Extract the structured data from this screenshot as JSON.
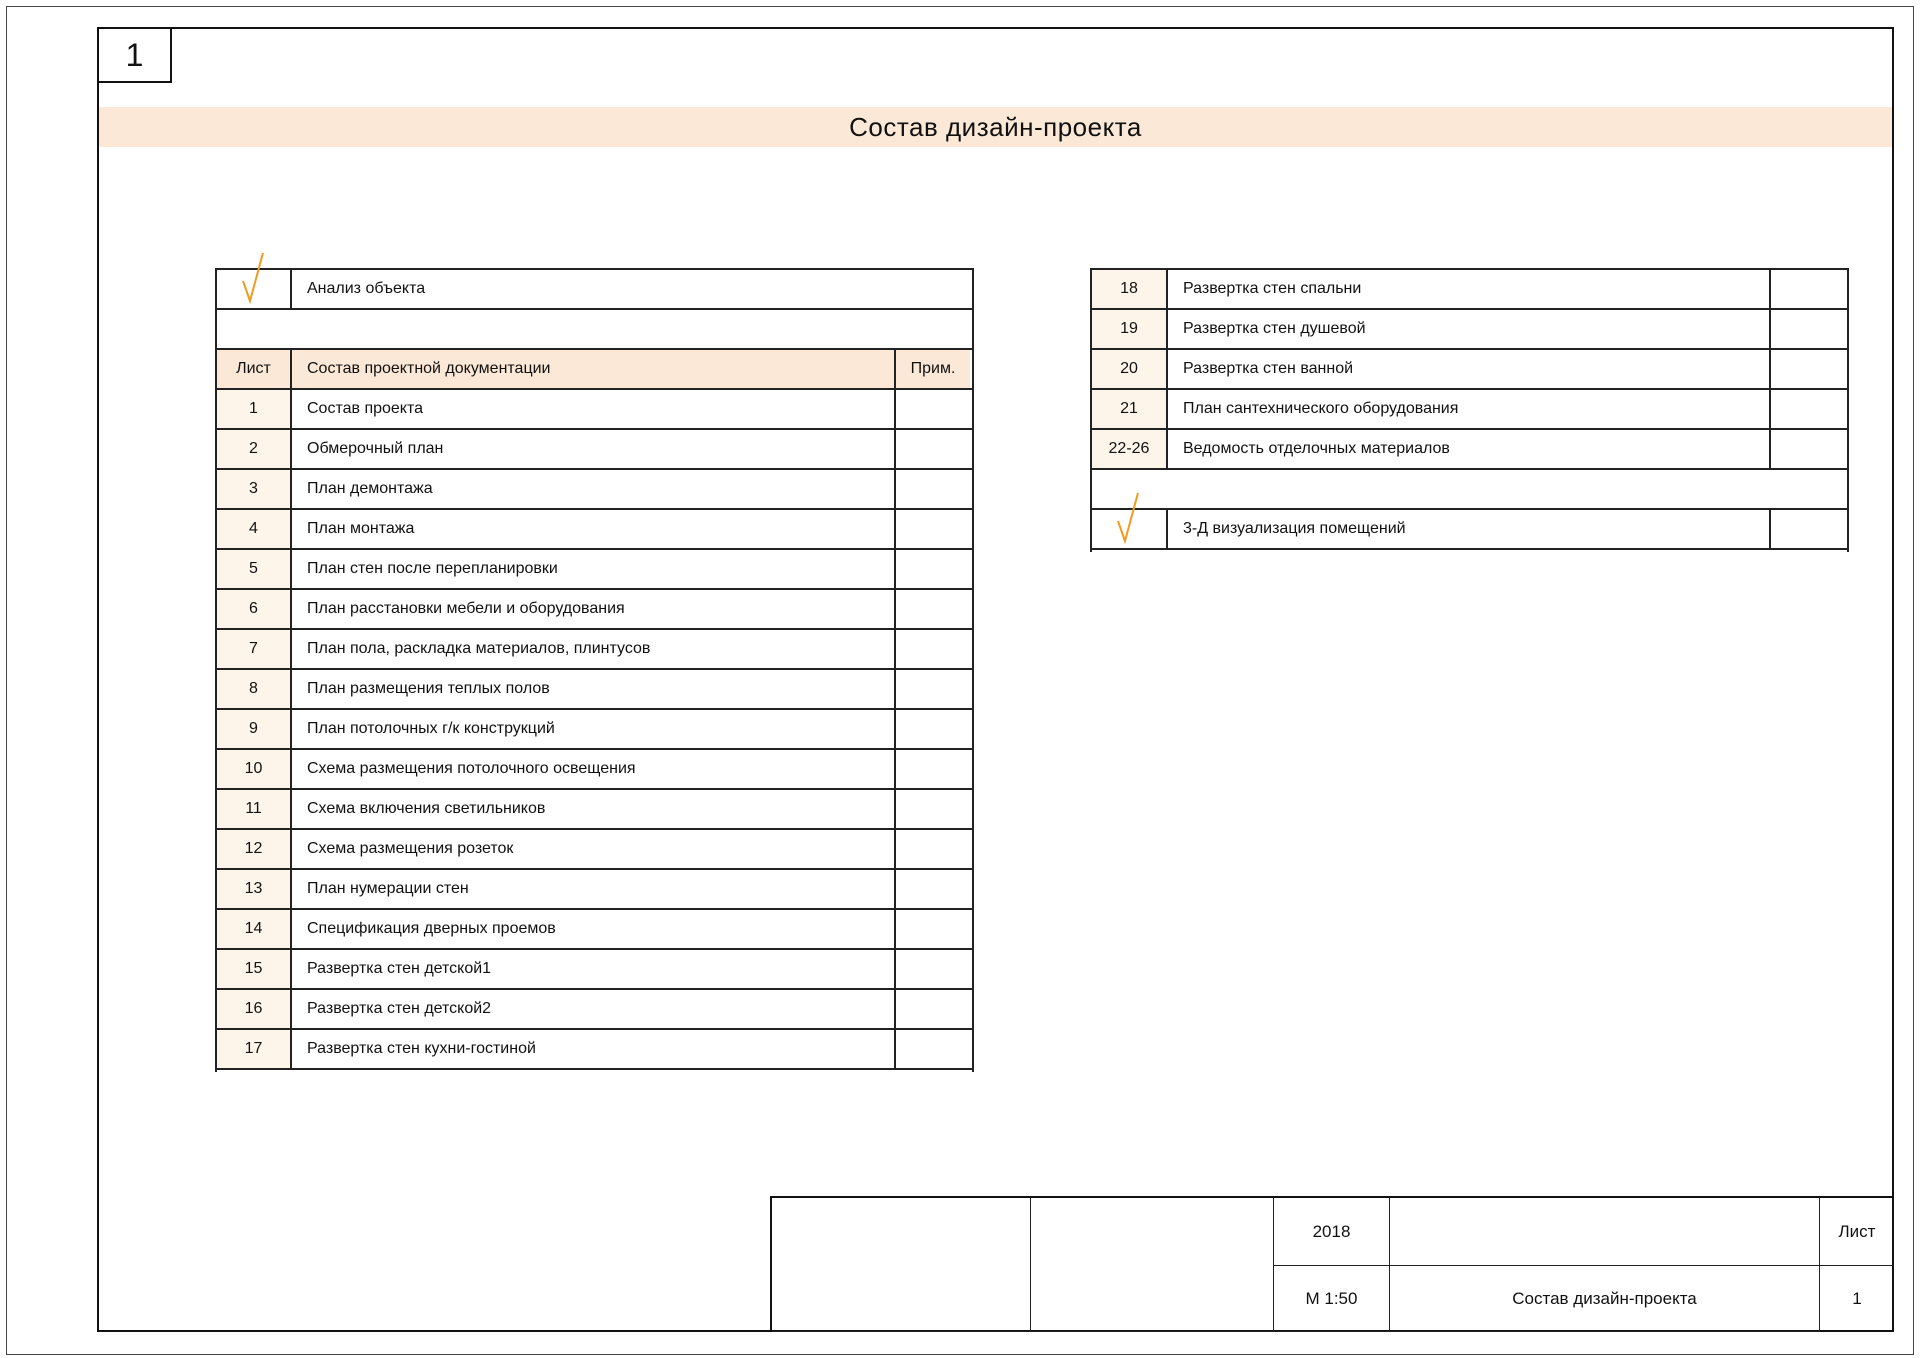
{
  "sheet_number": "1",
  "title": "Состав дизайн-проекта",
  "left_table": {
    "intro": {
      "mark": "check-icon",
      "label": "Анализ объекта"
    },
    "header": {
      "sheet": "Лист",
      "content": "Состав проектной документации",
      "note": "Прим."
    },
    "rows": [
      {
        "sheet": "1",
        "content": "Состав проекта"
      },
      {
        "sheet": "2",
        "content": "Обмерочный план"
      },
      {
        "sheet": "3",
        "content": "План демонтажа"
      },
      {
        "sheet": "4",
        "content": "План монтажа"
      },
      {
        "sheet": "5",
        "content": "План стен после перепланировки"
      },
      {
        "sheet": "6",
        "content": "План расстановки мебели и оборудования"
      },
      {
        "sheet": "7",
        "content": "План пола, раскладка материалов, плинтусов"
      },
      {
        "sheet": "8",
        "content": "План размещения теплых полов"
      },
      {
        "sheet": "9",
        "content": "План потолочных г/к конструкций"
      },
      {
        "sheet": "10",
        "content": "Схема размещения потолочного освещения"
      },
      {
        "sheet": "11",
        "content": "Схема включения светильников"
      },
      {
        "sheet": "12",
        "content": "Схема размещения розеток"
      },
      {
        "sheet": "13",
        "content": "План нумерации стен"
      },
      {
        "sheet": "14",
        "content": "Спецификация дверных проемов"
      },
      {
        "sheet": "15",
        "content": "Развертка стен детской1"
      },
      {
        "sheet": "16",
        "content": "Развертка стен детской2"
      },
      {
        "sheet": "17",
        "content": "Развертка стен кухни-гостиной"
      }
    ]
  },
  "right_table": {
    "rows": [
      {
        "sheet": "18",
        "content": "Развертка стен спальни"
      },
      {
        "sheet": "19",
        "content": "Развертка стен душевой"
      },
      {
        "sheet": "20",
        "content": "Развертка стен ванной"
      },
      {
        "sheet": "21",
        "content": "План сантехнического оборудования"
      },
      {
        "sheet": "22-26",
        "content": "Ведомость отделочных материалов"
      }
    ],
    "extra": {
      "mark": "check-icon",
      "label": "3-Д визуализация помещений"
    }
  },
  "stamp": {
    "year": "2018",
    "scale": "М 1:50",
    "title": "Состав дизайн-проекта",
    "sheet_label": "Лист",
    "sheet_value": "1"
  },
  "colors": {
    "header_fill": "#fce8d6",
    "number_fill": "#fdf5ea",
    "check_mark": "#f29a1f"
  }
}
